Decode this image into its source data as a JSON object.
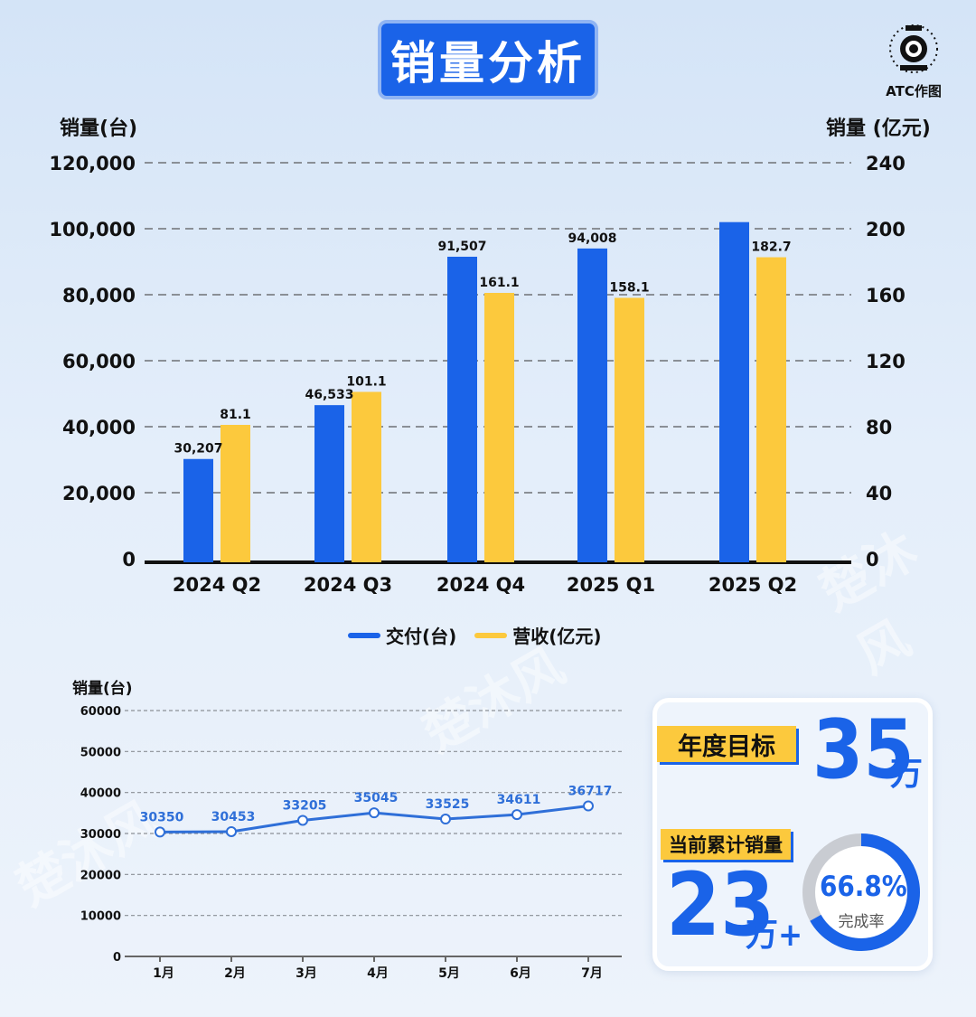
{
  "title": "销量分析",
  "logo_text": "ATC作图",
  "watermark": "楚沐风",
  "bar_chart": {
    "left_axis_title": "销量(台)",
    "right_axis_title": "销量 (亿元)",
    "left_ticks": [
      "120,000",
      "100,000",
      "80,000",
      "60,000",
      "40,000",
      "20,000",
      "0"
    ],
    "right_ticks": [
      "240",
      "200",
      "160",
      "120",
      "80",
      "40",
      "0"
    ],
    "legend": [
      "交付(台)",
      "营收(亿元)"
    ],
    "colors": {
      "blue": "#1a63e8",
      "yellow": "#fcc93d"
    }
  },
  "line_chart": {
    "axis_title": "销量(台)",
    "y_ticks": [
      "60000",
      "50000",
      "40000",
      "30000",
      "20000",
      "10000",
      "0"
    ],
    "color": "#2f6fd8"
  },
  "card": {
    "target_label": "年度目标",
    "target_value": "35",
    "target_unit": "万",
    "current_label": "当前累计销量",
    "current_value": "23",
    "current_unit": "万+",
    "rate": "66.8%",
    "rate_label": "完成率",
    "rate_fraction": 0.668
  },
  "chart_data": [
    {
      "type": "bar",
      "categories": [
        "2024 Q2",
        "2024 Q3",
        "2024 Q4",
        "2025 Q1",
        "2025 Q2"
      ],
      "series": [
        {
          "name": "交付(台)",
          "axis": "left",
          "values": [
            30207,
            46533,
            91507,
            94008,
            102000
          ],
          "labels": [
            "30,207",
            "46,533",
            "91,507",
            "94,008",
            ""
          ]
        },
        {
          "name": "营收(亿元)",
          "axis": "right",
          "values": [
            81.1,
            101.1,
            161.1,
            158.1,
            182.7
          ],
          "labels": [
            "81.1",
            "101.1",
            "161.1",
            "158.1",
            "182.7"
          ]
        }
      ],
      "ylim_left": [
        0,
        120000
      ],
      "ylim_right": [
        0,
        240
      ],
      "ylabel": "销量(台)",
      "ylabel_right": "销量 (亿元)",
      "grid": true,
      "legend": "bottom"
    },
    {
      "type": "line",
      "categories": [
        "1月",
        "2月",
        "3月",
        "4月",
        "5月",
        "6月",
        "7月"
      ],
      "values": [
        30350,
        30453,
        33205,
        35045,
        33525,
        34611,
        36717
      ],
      "ylim": [
        0,
        60000
      ],
      "ylabel": "销量(台)",
      "grid": true
    }
  ]
}
